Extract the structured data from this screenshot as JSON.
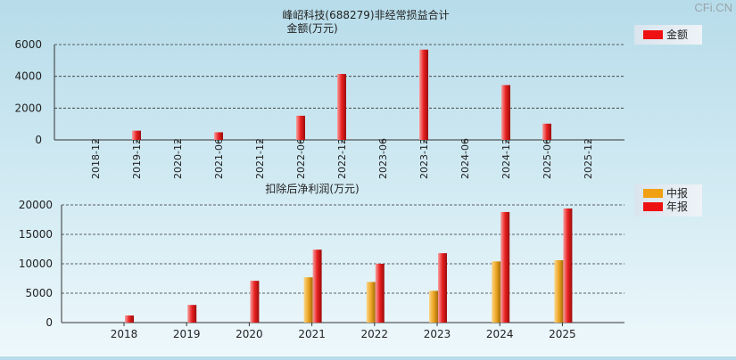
{
  "watermark": "CFi.CN",
  "chart_data": [
    {
      "type": "bar",
      "title": "峰岹科技(688279)非经常损益合计",
      "subtitle": "金额(万元)",
      "categories": [
        "2018-12",
        "2019-12",
        "2020-12",
        "2021-06",
        "2021-12",
        "2022-06",
        "2022-12",
        "2023-06",
        "2023-12",
        "2024-06",
        "2024-12",
        "2025-06",
        "2025-12"
      ],
      "series": [
        {
          "name": "金额",
          "color": "#ee1111",
          "values": [
            0,
            580,
            0,
            480,
            0,
            1520,
            4150,
            0,
            5680,
            0,
            3450,
            1020,
            0
          ]
        }
      ],
      "ylim": [
        0,
        6000
      ],
      "yticks": [
        0,
        2000,
        4000,
        6000
      ],
      "grid": true,
      "legend": "top-right"
    },
    {
      "type": "bar",
      "title": "扣除后净利润(万元)",
      "categories": [
        "2018",
        "2019",
        "2020",
        "2021",
        "2022",
        "2023",
        "2024",
        "2025"
      ],
      "series": [
        {
          "name": "中报",
          "color": "#f0a010",
          "values": [
            0,
            0,
            0,
            7700,
            6900,
            5400,
            10400,
            10600
          ]
        },
        {
          "name": "年报",
          "color": "#ee1111",
          "values": [
            1200,
            3000,
            7100,
            12400,
            10000,
            11800,
            18800,
            19400
          ]
        }
      ],
      "ylim": [
        0,
        20000
      ],
      "yticks": [
        0,
        5000,
        10000,
        15000,
        20000
      ],
      "grid": true,
      "legend": "top-right"
    }
  ]
}
